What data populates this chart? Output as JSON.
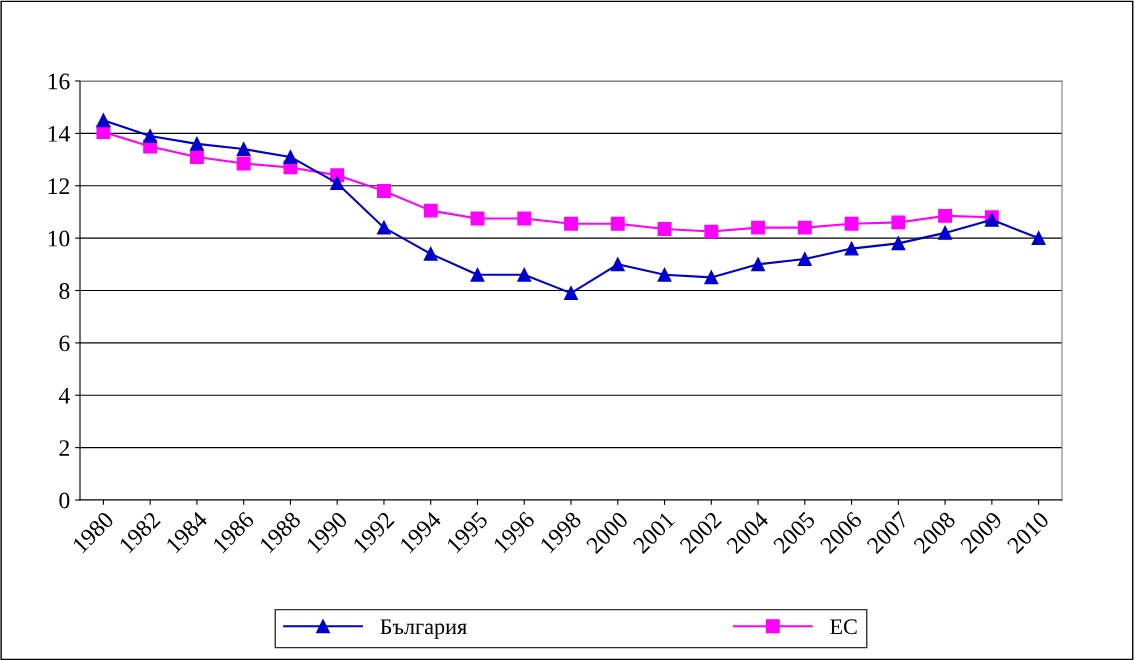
{
  "chart_data": {
    "type": "line",
    "categories": [
      "1980",
      "1982",
      "1984",
      "1986",
      "1988",
      "1990",
      "1992",
      "1994",
      "1995",
      "1996",
      "1998",
      "2000",
      "2001",
      "2002",
      "2004",
      "2005",
      "2006",
      "2007",
      "2008",
      "2009",
      "2010"
    ],
    "series": [
      {
        "name": "България",
        "color": "#0000cc",
        "marker": "triangle",
        "values": [
          14.5,
          13.9,
          13.6,
          13.4,
          13.1,
          12.1,
          10.4,
          9.4,
          8.6,
          8.6,
          7.9,
          9.0,
          8.6,
          8.5,
          9.0,
          9.2,
          9.6,
          9.8,
          10.2,
          10.7,
          10.0
        ]
      },
      {
        "name": "ЕС",
        "color": "#ff00ff",
        "marker": "square",
        "values": [
          14.05,
          13.5,
          13.1,
          12.85,
          12.7,
          12.4,
          11.8,
          11.05,
          10.75,
          10.75,
          10.55,
          10.55,
          10.35,
          10.25,
          10.4,
          10.4,
          10.55,
          10.6,
          10.85,
          10.8,
          null
        ]
      }
    ],
    "ylim": [
      0,
      16
    ],
    "yticks": [
      0,
      2,
      4,
      6,
      8,
      10,
      12,
      14,
      16
    ],
    "grid": "y",
    "legend": "bottom",
    "line_style": "solid"
  }
}
